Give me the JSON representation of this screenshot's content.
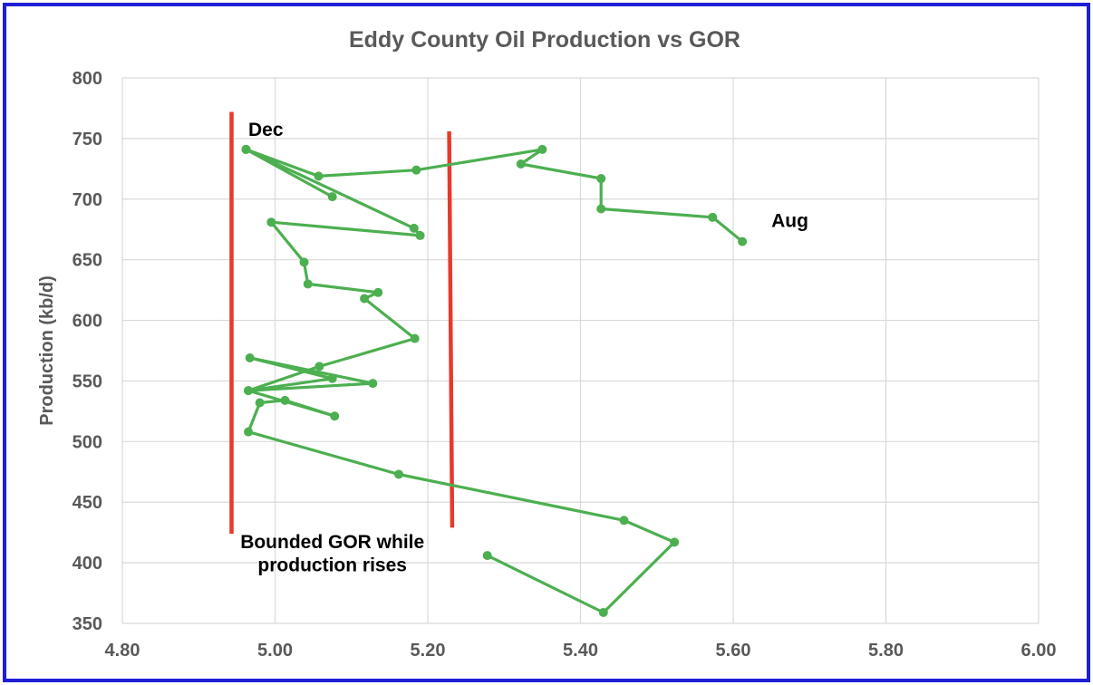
{
  "chart_data": {
    "type": "scatter",
    "title": "Eddy County Oil Production vs GOR",
    "xlabel": "",
    "ylabel": "Production (kb/d)",
    "xlim": [
      4.8,
      6.0
    ],
    "ylim": [
      350,
      800
    ],
    "x_ticks": [
      "4.80",
      "5.00",
      "5.20",
      "5.40",
      "5.60",
      "5.80",
      "6.00"
    ],
    "y_ticks": [
      "350",
      "400",
      "450",
      "500",
      "550",
      "600",
      "650",
      "700",
      "750",
      "800"
    ],
    "grid": true,
    "legend": "none",
    "series": [
      {
        "color": "#4caf50",
        "points": [
          {
            "x": 5.278,
            "y": 406
          },
          {
            "x": 5.43,
            "y": 359
          },
          {
            "x": 5.523,
            "y": 417
          },
          {
            "x": 5.457,
            "y": 435
          },
          {
            "x": 5.162,
            "y": 473
          },
          {
            "x": 4.965,
            "y": 508
          },
          {
            "x": 4.98,
            "y": 532
          },
          {
            "x": 5.013,
            "y": 534
          },
          {
            "x": 5.078,
            "y": 521
          },
          {
            "x": 4.965,
            "y": 542
          },
          {
            "x": 5.075,
            "y": 552
          },
          {
            "x": 4.967,
            "y": 569
          },
          {
            "x": 5.128,
            "y": 548
          },
          {
            "x": 4.965,
            "y": 542
          },
          {
            "x": 5.058,
            "y": 562
          },
          {
            "x": 5.183,
            "y": 585
          },
          {
            "x": 5.117,
            "y": 618
          },
          {
            "x": 5.135,
            "y": 623
          },
          {
            "x": 5.043,
            "y": 630
          },
          {
            "x": 5.038,
            "y": 648
          },
          {
            "x": 4.995,
            "y": 681
          },
          {
            "x": 5.19,
            "y": 670
          },
          {
            "x": 5.182,
            "y": 676
          },
          {
            "x": 4.962,
            "y": 741
          },
          {
            "x": 5.075,
            "y": 702
          },
          {
            "x": 4.962,
            "y": 741
          },
          {
            "x": 5.057,
            "y": 719
          },
          {
            "x": 5.185,
            "y": 724
          },
          {
            "x": 5.35,
            "y": 741
          },
          {
            "x": 5.322,
            "y": 729
          },
          {
            "x": 5.427,
            "y": 717
          },
          {
            "x": 5.427,
            "y": 692
          },
          {
            "x": 5.573,
            "y": 685
          },
          {
            "x": 5.612,
            "y": 665
          }
        ]
      }
    ],
    "reference_lines": [
      {
        "color": "#e8392b",
        "x_start": 4.943,
        "y_start": 772,
        "x_end": 4.943,
        "y_end": 424
      },
      {
        "color": "#e8392b",
        "x_start": 5.228,
        "y_start": 756,
        "x_end": 5.232,
        "y_end": 429
      }
    ],
    "annotations": [
      {
        "text": "Dec",
        "x": 4.965,
        "y": 752
      },
      {
        "text": "Aug",
        "x": 5.65,
        "y": 677
      },
      {
        "text": "Bounded GOR while",
        "x": 5.075,
        "y": 412
      },
      {
        "text": "production rises",
        "x": 5.075,
        "y": 393
      }
    ]
  },
  "colors": {
    "frame": "#1f1fd6",
    "series": "#4caf50",
    "reference": "#e8392b",
    "grid": "#d9d9d9",
    "text": "#595959"
  }
}
